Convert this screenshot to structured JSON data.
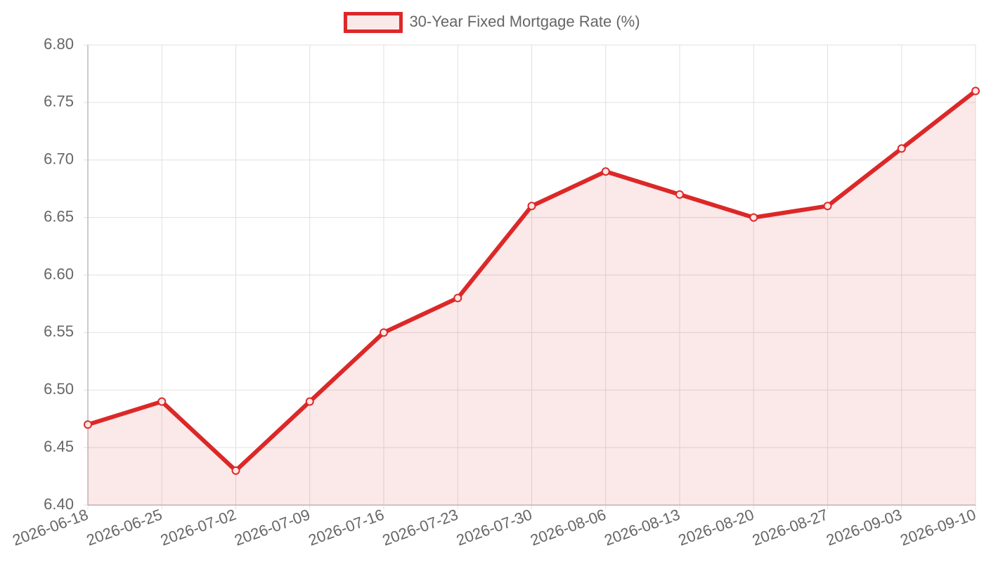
{
  "chart_data": {
    "type": "line",
    "categories": [
      "2026-06-18",
      "2026-06-25",
      "2026-07-02",
      "2026-07-09",
      "2026-07-16",
      "2026-07-23",
      "2026-07-30",
      "2026-08-06",
      "2026-08-13",
      "2026-08-20",
      "2026-08-27",
      "2026-09-03",
      "2026-09-10"
    ],
    "series": [
      {
        "name": "30-Year Fixed Mortgage Rate (%)",
        "color": "#dc2828",
        "fill": true,
        "values": [
          6.47,
          6.49,
          6.43,
          6.49,
          6.55,
          6.58,
          6.66,
          6.69,
          6.67,
          6.65,
          6.66,
          6.71,
          6.76
        ]
      }
    ],
    "ylim": [
      6.4,
      6.8
    ],
    "yticks": [
      {
        "value": 6.4,
        "label": "6.40"
      },
      6.45,
      {
        "value": 6.5,
        "label": "6.50"
      },
      6.55,
      {
        "value": 6.6,
        "label": "6.60"
      },
      6.65,
      {
        "value": 6.7,
        "label": "6.70"
      },
      6.75,
      {
        "value": 6.8,
        "label": "6.80"
      }
    ],
    "grid": true,
    "legend": "top"
  }
}
